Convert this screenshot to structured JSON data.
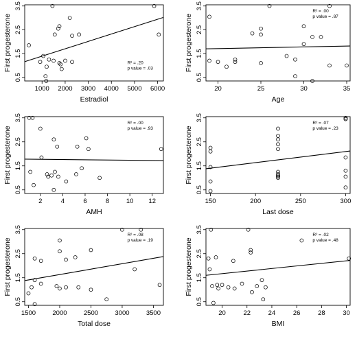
{
  "chart_data": [
    {
      "type": "scatter",
      "xlabel": "Estradiol",
      "ylabel": "First progesterone",
      "xlim": [
        250,
        6250
      ],
      "ylim": [
        0.35,
        3.55
      ],
      "xticks": [
        1000,
        2000,
        3000,
        4000,
        5000,
        6000
      ],
      "yticks": [
        0.5,
        1.5,
        2.5,
        3.5
      ],
      "stats": [
        "R² = .20",
        "p value = .03"
      ],
      "trendline": {
        "x": [
          250,
          6250
        ],
        "y": [
          1.16,
          3.02
        ]
      },
      "points": [
        {
          "x": 430,
          "y": 1.85
        },
        {
          "x": 920,
          "y": 1.15
        },
        {
          "x": 1050,
          "y": 1.4
        },
        {
          "x": 1150,
          "y": 0.55
        },
        {
          "x": 1180,
          "y": 0.35
        },
        {
          "x": 1200,
          "y": 0.95
        },
        {
          "x": 1300,
          "y": 1.25
        },
        {
          "x": 1450,
          "y": 3.5
        },
        {
          "x": 1500,
          "y": 1.2
        },
        {
          "x": 1550,
          "y": 2.3
        },
        {
          "x": 1700,
          "y": 2.55
        },
        {
          "x": 1750,
          "y": 2.65
        },
        {
          "x": 1750,
          "y": 1.1
        },
        {
          "x": 1800,
          "y": 1.05
        },
        {
          "x": 1850,
          "y": 0.85
        },
        {
          "x": 2000,
          "y": 1.2
        },
        {
          "x": 2200,
          "y": 3.0
        },
        {
          "x": 2300,
          "y": 1.15
        },
        {
          "x": 2300,
          "y": 2.25
        },
        {
          "x": 2600,
          "y": 2.3
        },
        {
          "x": 5850,
          "y": 3.5
        },
        {
          "x": 6050,
          "y": 2.3
        }
      ]
    },
    {
      "type": "scatter",
      "xlabel": "Age",
      "ylabel": "First progesterone",
      "xlim": [
        18.6,
        35.4
      ],
      "ylim": [
        0.35,
        3.55
      ],
      "xticks": [
        20,
        25,
        30,
        35
      ],
      "yticks": [
        0.5,
        1.5,
        2.5,
        3.5
      ],
      "stats": [
        "R² = .00",
        "p value = .87"
      ],
      "trendline": {
        "x": [
          18.6,
          35.4
        ],
        "y": [
          1.7,
          1.82
        ]
      },
      "points": [
        {
          "x": 19,
          "y": 3.05
        },
        {
          "x": 19,
          "y": 1.2
        },
        {
          "x": 20,
          "y": 1.15
        },
        {
          "x": 21,
          "y": 0.95
        },
        {
          "x": 22,
          "y": 1.25
        },
        {
          "x": 22,
          "y": 1.15
        },
        {
          "x": 24,
          "y": 2.35
        },
        {
          "x": 25,
          "y": 2.55
        },
        {
          "x": 25,
          "y": 2.3
        },
        {
          "x": 25,
          "y": 1.1
        },
        {
          "x": 26,
          "y": 3.5
        },
        {
          "x": 28,
          "y": 1.4
        },
        {
          "x": 29,
          "y": 1.25
        },
        {
          "x": 29,
          "y": 0.55
        },
        {
          "x": 30,
          "y": 2.65
        },
        {
          "x": 30,
          "y": 1.9
        },
        {
          "x": 31,
          "y": 0.35
        },
        {
          "x": 31,
          "y": 2.2
        },
        {
          "x": 32,
          "y": 2.2
        },
        {
          "x": 33,
          "y": 3.5
        },
        {
          "x": 33,
          "y": 1.0
        },
        {
          "x": 35,
          "y": 1.0
        }
      ]
    },
    {
      "type": "scatter",
      "xlabel": "AMH",
      "ylabel": "First progesterone",
      "xlim": [
        0.6,
        13.0
      ],
      "ylim": [
        0.35,
        3.55
      ],
      "xticks": [
        2,
        4,
        6,
        8,
        10,
        12
      ],
      "yticks": [
        0.5,
        1.5,
        2.5,
        3.5
      ],
      "stats": [
        "R² = .00",
        "p value = .93"
      ],
      "trendline": {
        "x": [
          0.6,
          13.0
        ],
        "y": [
          1.78,
          1.72
        ]
      },
      "points": [
        {
          "x": 1.0,
          "y": 3.5
        },
        {
          "x": 1.1,
          "y": 1.25
        },
        {
          "x": 1.3,
          "y": 3.5
        },
        {
          "x": 1.4,
          "y": 0.7
        },
        {
          "x": 2.0,
          "y": 3.05
        },
        {
          "x": 2.1,
          "y": 1.85
        },
        {
          "x": 2.6,
          "y": 1.15
        },
        {
          "x": 2.7,
          "y": 1.05
        },
        {
          "x": 3.0,
          "y": 1.1
        },
        {
          "x": 3.2,
          "y": 2.6
        },
        {
          "x": 3.3,
          "y": 1.25
        },
        {
          "x": 3.5,
          "y": 2.3
        },
        {
          "x": 3.6,
          "y": 1.05
        },
        {
          "x": 3.2,
          "y": 0.5
        },
        {
          "x": 4.3,
          "y": 0.85
        },
        {
          "x": 5.2,
          "y": 1.15
        },
        {
          "x": 5.3,
          "y": 2.3
        },
        {
          "x": 5.7,
          "y": 1.4
        },
        {
          "x": 6.1,
          "y": 2.65
        },
        {
          "x": 6.3,
          "y": 2.2
        },
        {
          "x": 7.3,
          "y": 1.0
        },
        {
          "x": 12.8,
          "y": 2.2
        }
      ]
    },
    {
      "type": "scatter",
      "xlabel": "Last dose",
      "ylabel": "First progesterone",
      "xlim": [
        145,
        305
      ],
      "ylim": [
        0.35,
        3.55
      ],
      "xticks": [
        150,
        200,
        250,
        300
      ],
      "yticks": [
        0.5,
        1.5,
        2.5,
        3.5
      ],
      "stats": [
        "R² = .07",
        "p value = .23"
      ],
      "trendline": {
        "x": [
          145,
          305
        ],
        "y": [
          1.38,
          2.12
        ]
      },
      "points": [
        {
          "x": 150,
          "y": 2.25
        },
        {
          "x": 150,
          "y": 2.1
        },
        {
          "x": 150,
          "y": 1.45
        },
        {
          "x": 150,
          "y": 0.85
        },
        {
          "x": 150,
          "y": 0.45
        },
        {
          "x": 225,
          "y": 3.05
        },
        {
          "x": 225,
          "y": 2.75
        },
        {
          "x": 225,
          "y": 2.6
        },
        {
          "x": 225,
          "y": 2.4
        },
        {
          "x": 225,
          "y": 2.2
        },
        {
          "x": 225,
          "y": 1.25
        },
        {
          "x": 225,
          "y": 1.15
        },
        {
          "x": 225,
          "y": 1.1
        },
        {
          "x": 225,
          "y": 1.05
        },
        {
          "x": 225,
          "y": 1.0
        },
        {
          "x": 300,
          "y": 3.5
        },
        {
          "x": 300,
          "y": 3.45
        },
        {
          "x": 300,
          "y": 3.45
        },
        {
          "x": 300,
          "y": 1.85
        },
        {
          "x": 300,
          "y": 1.3
        },
        {
          "x": 300,
          "y": 1.05
        },
        {
          "x": 300,
          "y": 0.6
        }
      ]
    },
    {
      "type": "scatter",
      "xlabel": "Total dose",
      "ylabel": "First progesterone",
      "xlim": [
        1440,
        3660
      ],
      "ylim": [
        0.35,
        3.55
      ],
      "xticks": [
        1500,
        2000,
        2500,
        3000,
        3500
      ],
      "yticks": [
        0.5,
        1.5,
        2.5,
        3.5
      ],
      "stats": [
        "R² = .08",
        "p value = .19"
      ],
      "trendline": {
        "x": [
          1440,
          3660
        ],
        "y": [
          1.38,
          2.38
        ]
      },
      "points": [
        {
          "x": 1500,
          "y": 0.85
        },
        {
          "x": 1550,
          "y": 1.1
        },
        {
          "x": 1600,
          "y": 2.3
        },
        {
          "x": 1600,
          "y": 1.4
        },
        {
          "x": 1600,
          "y": 0.4
        },
        {
          "x": 1700,
          "y": 2.2
        },
        {
          "x": 1700,
          "y": 1.25
        },
        {
          "x": 1950,
          "y": 1.15
        },
        {
          "x": 2000,
          "y": 3.05
        },
        {
          "x": 2000,
          "y": 2.6
        },
        {
          "x": 2000,
          "y": 1.05
        },
        {
          "x": 2100,
          "y": 2.25
        },
        {
          "x": 2100,
          "y": 1.1
        },
        {
          "x": 2250,
          "y": 2.35
        },
        {
          "x": 2300,
          "y": 1.1
        },
        {
          "x": 2500,
          "y": 2.65
        },
        {
          "x": 2500,
          "y": 1.0
        },
        {
          "x": 2750,
          "y": 0.6
        },
        {
          "x": 3000,
          "y": 3.5
        },
        {
          "x": 3200,
          "y": 1.85
        },
        {
          "x": 3300,
          "y": 3.5
        },
        {
          "x": 3600,
          "y": 1.2
        }
      ]
    },
    {
      "type": "scatter",
      "xlabel": "BMI",
      "ylabel": "First progesterone",
      "xlim": [
        18.7,
        30.3
      ],
      "ylim": [
        0.35,
        3.55
      ],
      "xticks": [
        20,
        22,
        24,
        26,
        28,
        30
      ],
      "yticks": [
        0.5,
        1.5,
        2.5,
        3.5
      ],
      "stats": [
        "R² = .02",
        "p value = .48"
      ],
      "trendline": {
        "x": [
          18.7,
          30.3
        ],
        "y": [
          1.6,
          2.22
        ]
      },
      "points": [
        {
          "x": 18.9,
          "y": 2.3
        },
        {
          "x": 19.0,
          "y": 1.85
        },
        {
          "x": 19.1,
          "y": 3.5
        },
        {
          "x": 19.2,
          "y": 1.15
        },
        {
          "x": 19.3,
          "y": 0.45
        },
        {
          "x": 19.5,
          "y": 2.35
        },
        {
          "x": 19.6,
          "y": 1.2
        },
        {
          "x": 19.7,
          "y": 1.05
        },
        {
          "x": 20.0,
          "y": 1.2
        },
        {
          "x": 20.5,
          "y": 1.1
        },
        {
          "x": 20.9,
          "y": 2.2
        },
        {
          "x": 21.0,
          "y": 1.05
        },
        {
          "x": 21.6,
          "y": 1.25
        },
        {
          "x": 22.1,
          "y": 3.5
        },
        {
          "x": 22.3,
          "y": 2.65
        },
        {
          "x": 22.3,
          "y": 2.55
        },
        {
          "x": 22.4,
          "y": 0.9
        },
        {
          "x": 22.8,
          "y": 1.15
        },
        {
          "x": 23.2,
          "y": 1.4
        },
        {
          "x": 23.3,
          "y": 0.6
        },
        {
          "x": 23.5,
          "y": 1.1
        },
        {
          "x": 26.4,
          "y": 3.05
        },
        {
          "x": 30.2,
          "y": 2.3
        }
      ]
    }
  ]
}
